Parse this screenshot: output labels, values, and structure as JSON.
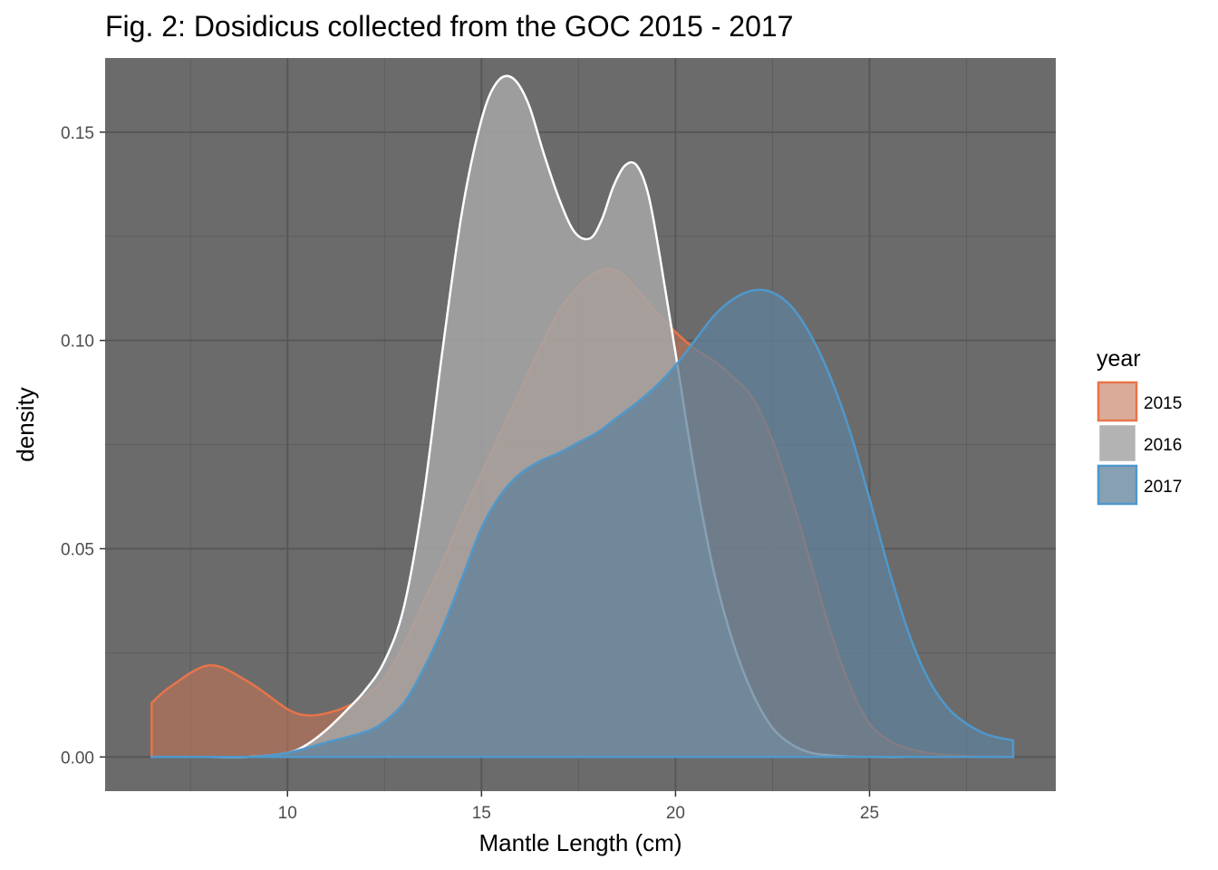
{
  "chart_data": {
    "type": "area",
    "subtype": "density",
    "title": "Fig. 2: Dosidicus collected from the GOC 2015 - 2017",
    "xlabel": "Mantle Length (cm)",
    "ylabel": "density",
    "xlim": [
      5.3,
      29.8
    ],
    "ylim": [
      -0.0082,
      0.1678
    ],
    "x_ticks": [
      10,
      15,
      20,
      25
    ],
    "y_ticks": [
      0.0,
      0.05,
      0.1,
      0.15
    ],
    "x_tick_labels": [
      "10",
      "15",
      "20",
      "25"
    ],
    "y_tick_labels": [
      "0.00",
      "0.05",
      "0.10",
      "0.15"
    ],
    "grid": true,
    "panel_background": "#6b6b6b",
    "legend": {
      "title": "year",
      "position": "right",
      "entries": [
        "2015",
        "2016",
        "2017"
      ]
    },
    "series": [
      {
        "name": "2015",
        "fill": "#c27355",
        "fill_opacity": 0.6,
        "line_color": "#e8744a",
        "line_opacity": 1,
        "x": [
          6.5,
          7.0,
          8.0,
          9.0,
          10.0,
          10.5,
          11.0,
          11.5,
          12.0,
          12.5,
          13.0,
          13.5,
          14.0,
          14.5,
          15.0,
          15.5,
          16.0,
          16.5,
          17.0,
          17.5,
          18.0,
          18.4,
          18.8,
          19.2,
          19.6,
          20.0,
          20.5,
          21.0,
          21.5,
          22.0,
          22.5,
          23.0,
          23.5,
          24.0,
          24.5,
          25.0,
          25.5,
          26.0,
          26.5,
          27.0,
          27.5,
          28.0,
          28.7
        ],
        "y": [
          0.013,
          0.017,
          0.022,
          0.018,
          0.0115,
          0.01,
          0.0105,
          0.012,
          0.0145,
          0.019,
          0.027,
          0.037,
          0.047,
          0.058,
          0.068,
          0.078,
          0.088,
          0.098,
          0.107,
          0.113,
          0.1165,
          0.117,
          0.1145,
          0.11,
          0.106,
          0.102,
          0.098,
          0.095,
          0.091,
          0.086,
          0.076,
          0.062,
          0.046,
          0.03,
          0.017,
          0.008,
          0.004,
          0.002,
          0.001,
          0.0005,
          0.0002,
          0.0001,
          0.0
        ]
      },
      {
        "name": "2016",
        "fill": "#a6a6a6",
        "fill_opacity": 0.85,
        "line_color": "#ffffff",
        "line_opacity": 1,
        "x": [
          6.5,
          7.0,
          8.0,
          9.0,
          10.0,
          10.5,
          11.0,
          11.5,
          12.0,
          12.5,
          13.0,
          13.5,
          14.0,
          14.5,
          15.0,
          15.4,
          15.8,
          16.2,
          16.6,
          17.0,
          17.4,
          17.8,
          18.1,
          18.4,
          18.7,
          19.0,
          19.3,
          19.6,
          20.0,
          20.5,
          21.0,
          21.5,
          22.0,
          22.5,
          23.0,
          23.5,
          24.0,
          24.5,
          25.0,
          26.0,
          27.0,
          28.7
        ],
        "y": [
          0.0,
          0.0,
          0.0,
          0.0,
          0.001,
          0.003,
          0.0065,
          0.011,
          0.016,
          0.023,
          0.036,
          0.062,
          0.098,
          0.131,
          0.153,
          0.162,
          0.163,
          0.157,
          0.145,
          0.134,
          0.126,
          0.1245,
          0.129,
          0.137,
          0.142,
          0.142,
          0.135,
          0.12,
          0.097,
          0.068,
          0.044,
          0.027,
          0.015,
          0.007,
          0.003,
          0.001,
          0.0004,
          0.0001,
          0.0,
          0.0,
          0.0,
          0.0
        ]
      },
      {
        "name": "2017",
        "fill": "#5f8099",
        "fill_opacity": 0.75,
        "line_color": "#4f98cc",
        "line_opacity": 1,
        "x": [
          6.5,
          7.0,
          8.0,
          9.0,
          10.0,
          11.0,
          12.0,
          12.5,
          13.0,
          13.5,
          14.0,
          14.5,
          15.0,
          15.5,
          16.0,
          16.5,
          17.0,
          17.5,
          18.0,
          18.5,
          19.0,
          19.5,
          20.0,
          20.5,
          21.0,
          21.5,
          22.0,
          22.5,
          23.0,
          23.5,
          24.0,
          24.5,
          25.0,
          25.5,
          26.0,
          26.5,
          27.0,
          27.5,
          28.0,
          28.4,
          28.7
        ],
        "y": [
          0.0,
          0.0,
          0.0,
          0.0,
          0.001,
          0.0035,
          0.006,
          0.0085,
          0.013,
          0.021,
          0.031,
          0.043,
          0.055,
          0.063,
          0.068,
          0.071,
          0.073,
          0.0755,
          0.078,
          0.0815,
          0.085,
          0.089,
          0.094,
          0.1,
          0.106,
          0.11,
          0.112,
          0.1115,
          0.108,
          0.101,
          0.091,
          0.078,
          0.062,
          0.045,
          0.03,
          0.019,
          0.012,
          0.008,
          0.0055,
          0.0045,
          0.004
        ]
      }
    ]
  }
}
